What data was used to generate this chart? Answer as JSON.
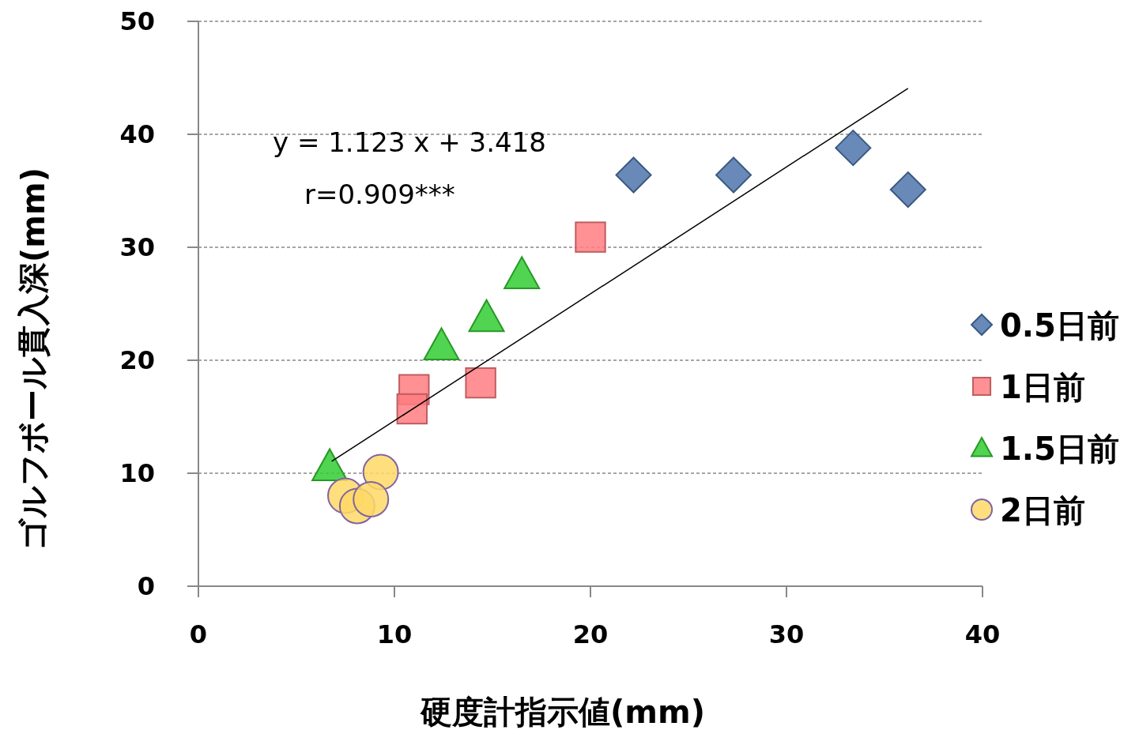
{
  "chart_data": {
    "type": "scatter",
    "xlabel": "硬度計指示値(mm)",
    "ylabel": "ゴルフボール貫入深(mm)",
    "xlim": [
      0,
      40
    ],
    "xticks": [
      0,
      10,
      20,
      30,
      40
    ],
    "ylim": [
      0,
      50
    ],
    "yticks": [
      0,
      10,
      20,
      30,
      40,
      50
    ],
    "grid": "y",
    "legend": "right",
    "annotations": [
      "y = 1.123 x + 3.418",
      "r=0.909***"
    ],
    "series": [
      {
        "name": "0.5日前",
        "color": "#4f76ad",
        "marker": "diamond",
        "x": [
          22.2,
          27.3,
          33.4,
          36.2
        ],
        "values": [
          36.4,
          36.4,
          38.8,
          35.1
        ]
      },
      {
        "name": "1日前",
        "color": "#ff7c80",
        "marker": "square",
        "x": [
          20.0,
          11.0,
          10.9,
          14.4
        ],
        "values": [
          30.9,
          17.4,
          15.7,
          18.0
        ]
      },
      {
        "name": "1.5日前",
        "color": "#33cc33",
        "marker": "triangle",
        "x": [
          6.7,
          12.4,
          14.7,
          16.5
        ],
        "values": [
          10.6,
          21.3,
          23.8,
          27.6
        ]
      },
      {
        "name": "2日前",
        "color": "#ffd966",
        "marker": "circle",
        "x": [
          9.3,
          7.5,
          8.1,
          8.8
        ],
        "values": [
          10.1,
          8.0,
          7.1,
          7.7
        ]
      },
      {
        "type": "line",
        "color": "#000000",
        "marker": "none",
        "x": [
          6.8,
          36.2
        ],
        "values": [
          11.05,
          44.07
        ]
      }
    ]
  }
}
